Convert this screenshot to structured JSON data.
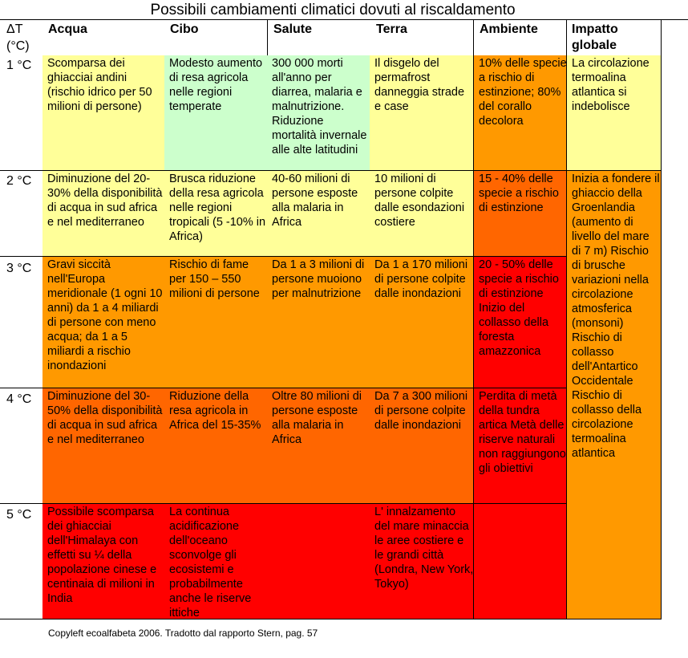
{
  "title": "Possibili cambiamenti climatici dovuti al riscaldamento",
  "header": {
    "temp_symbol": "ΔT",
    "temp_unit": "(°C)",
    "columns": [
      "Acqua",
      "Cibo",
      "Salute",
      "Terra",
      "Ambiente",
      "Impatto globale"
    ]
  },
  "rows": [
    {
      "temp": "1 °C",
      "cells": [
        "Scomparsa dei ghiacciai andini (rischio idrico per 50 milioni di persone)",
        "Modesto aumento di resa agricola nelle regioni temperate",
        "300 000 morti all'anno per diarrea, malaria e malnutrizione. Riduzione mortalità invernale alle alte latitudini",
        "Il disgelo del permafrost danneggia strade e case",
        "10% delle specie a rischio di estinzione; 80% del corallo decolora"
      ]
    },
    {
      "temp": "2 °C",
      "cells": [
        "Diminuzione del 20-30% della disponibilità di acqua in sud africa e nel mediterraneo",
        "Brusca riduzione della resa agricola nelle regioni tropicali (5 -10% in Africa)",
        "40-60 milioni di persone esposte alla malaria in Africa",
        "10 milioni di persone colpite dalle esondazioni costiere",
        "15 - 40% delle specie a rischio di estinzione"
      ]
    },
    {
      "temp": "3 °C",
      "cells": [
        "Gravi siccità nell'Europa meridionale (1 ogni 10 anni) da 1 a 4 miliardi di persone con meno acqua; da 1 a 5 miliardi a rischio inondazioni",
        "Rischio di fame per 150 – 550 milioni di persone",
        "Da 1 a 3 milioni di persone muoiono per malnutrizione",
        "Da 1 a 170 milioni di persone colpite dalle inondazioni",
        "20 - 50% delle specie a rischio di estinzione Inizio del collasso della foresta amazzonica"
      ]
    },
    {
      "temp": "4 °C",
      "cells": [
        "Diminuzione del 30-50% della disponibilità di acqua in sud africa e nel mediterraneo",
        "Riduzione della resa agricola in Africa del 15-35%",
        "Oltre 80 milioni di persone esposte alla malaria in Africa",
        "Da 7 a 300 milioni di persone colpite dalle inondazioni",
        "Perdita di metà della tundra artica Metà delle riserve naturali non raggiungono gli obiettivi"
      ]
    },
    {
      "temp": "5 °C",
      "cells": [
        "Possibile scomparsa dei ghiacciai dell'Himalaya con effetti su ¼ della popolazione cinese e centinaia di milioni in India",
        "La continua acidificazione dell'oceano sconvolge gli ecosistemi e probabilmente anche le riserve ittiche",
        "",
        "L' innalzamento del mare minaccia le aree costiere e le grandi città (Londra, New York, Tokyo)",
        ""
      ]
    }
  ],
  "global_impact": {
    "1": "La circolazione termoalina atlantica si indebolisce",
    "2": "Inizia a fondere il ghiaccio della Groenlandia (aumento di livello del mare di 7 m) Rischio di brusche variazioni nella circolazione atmosferica (monsoni) Rischio di collasso dell'Antartico Occidentale Rischio di collasso della circolazione termoalina atlantica"
  },
  "footer": "Copyleft ecoalfabeta 2006. Tradotto dal rapporto Stern, pag. 57",
  "colors": {
    "light_yellow": "#ffff99",
    "light_green": "#ccffcc",
    "orange": "#ff9900",
    "dark_orange": "#ff6600",
    "red": "#ff0000"
  }
}
